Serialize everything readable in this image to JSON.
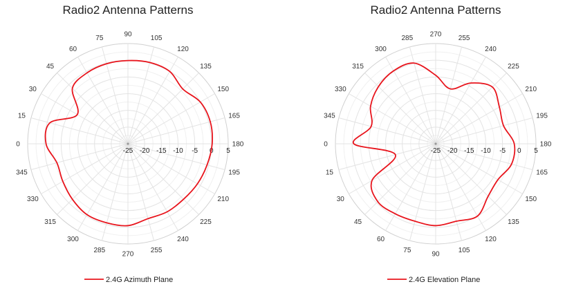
{
  "chart_data": [
    {
      "type": "polar-line",
      "title": "Radio2 Antenna Patterns",
      "rlim": [
        -25,
        5
      ],
      "radial_ticks": [
        "-25",
        "-20",
        "-15",
        "-10",
        "-5",
        "0",
        "5"
      ],
      "angle_labels": [
        "180",
        "195",
        "210",
        "225",
        "240",
        "255",
        "270",
        "285",
        "300",
        "315",
        "330",
        "345",
        "0",
        "15",
        "30",
        "45",
        "60",
        "75",
        "90",
        "105",
        "120",
        "135",
        "150",
        "165"
      ],
      "angle_direction": "clockwise",
      "angle_zero_location": "left",
      "grid": true,
      "legend": "bottom-left",
      "colors": {
        "line": "#e8141c",
        "grid": "#e3e3e3",
        "text": "#333333"
      },
      "series": [
        {
          "name": "2.4G Azimuth Plane",
          "theta": [
            0,
            15,
            30,
            45,
            60,
            75,
            90,
            105,
            120,
            135,
            150,
            165,
            180,
            195,
            210,
            225,
            240,
            255,
            270,
            285,
            300,
            315,
            330,
            345
          ],
          "r": [
            -0.5,
            -0.8,
            -7.5,
            -1.5,
            -0.5,
            -0.2,
            -0.1,
            0.2,
            0.0,
            -1.8,
            0.0,
            0.5,
            0.2,
            -0.5,
            -1.0,
            -1.5,
            -1.5,
            -1.8,
            -0.5,
            -0.5,
            -0.5,
            -1.5,
            -2.5,
            -3.0
          ]
        }
      ]
    },
    {
      "type": "polar-line",
      "title": "Radio2 Antenna Patterns",
      "rlim": [
        -25,
        5
      ],
      "radial_ticks": [
        "-25",
        "-20",
        "-15",
        "-10",
        "-5",
        "0",
        "5"
      ],
      "angle_labels": [
        "180",
        "165",
        "150",
        "135",
        "120",
        "105",
        "90",
        "75",
        "60",
        "45",
        "30",
        "15",
        "0",
        "345",
        "330",
        "315",
        "300",
        "285",
        "270",
        "255",
        "240",
        "225",
        "210",
        "195"
      ],
      "angle_direction": "counterclockwise",
      "angle_zero_location": "left",
      "grid": true,
      "legend": "bottom-left",
      "colors": {
        "line": "#e8141c",
        "grid": "#e3e3e3",
        "text": "#333333"
      },
      "series": [
        {
          "name": "2.4G Elevation Plane",
          "theta": [
            0,
            15,
            30,
            45,
            60,
            75,
            90,
            105,
            120,
            135,
            150,
            165,
            180,
            195,
            210,
            225,
            240,
            255,
            270,
            285,
            300,
            315,
            330,
            345
          ],
          "r": [
            -0.5,
            -12.5,
            -3.0,
            -0.5,
            -0.8,
            -1.0,
            -0.5,
            -1.0,
            0.0,
            -2.8,
            -3.5,
            -1.5,
            -1.5,
            -4.0,
            -3.0,
            -1.0,
            -4.0,
            -8.0,
            -4.5,
            0.0,
            0.2,
            -0.8,
            -2.5,
            -5.0
          ]
        }
      ]
    }
  ]
}
